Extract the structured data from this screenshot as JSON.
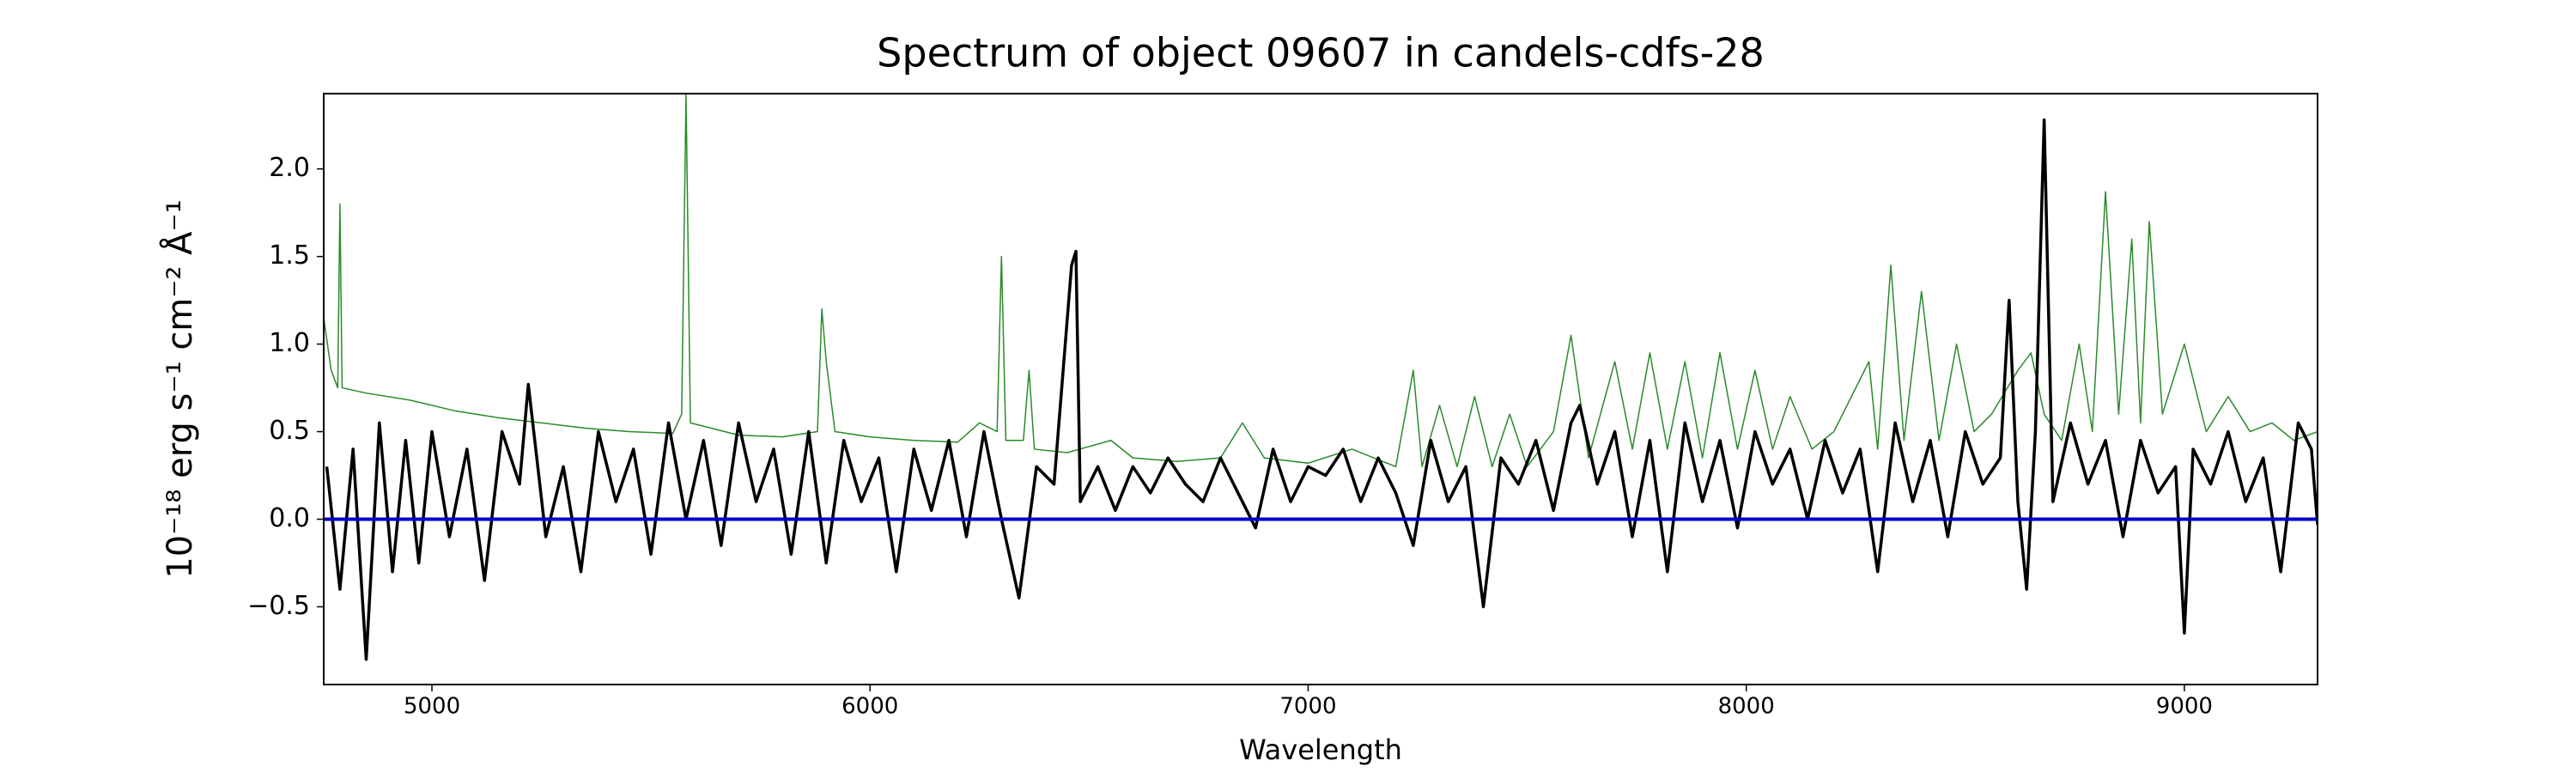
{
  "chart_data": {
    "type": "line",
    "title": "Spectrum of object 09607 in candels-cdfs-28",
    "xlabel": "Wavelength",
    "ylabel": "10⁻¹⁸ erg s⁻¹ cm⁻² Å⁻¹",
    "xlim": [
      4753,
      9304
    ],
    "ylim": [
      -0.944,
      2.43
    ],
    "xticks": [
      5000,
      6000,
      7000,
      8000,
      9000
    ],
    "yticks": [
      {
        "value": -0.5,
        "label": "−0.5"
      },
      {
        "value": 0,
        "label": "0.0"
      },
      0.5,
      {
        "value": 1,
        "label": "1.0"
      },
      1.5,
      {
        "value": 2,
        "label": "2.0"
      }
    ],
    "series": [
      {
        "color": "#2a8a2a",
        "width": 1.5,
        "x": [
          4753,
          4770,
          4785,
          4790,
          4795,
          4850,
          4950,
          5050,
          5150,
          5250,
          5350,
          5450,
          5550,
          5570,
          5580,
          5590,
          5700,
          5800,
          5880,
          5890,
          5900,
          5920,
          6000,
          6100,
          6200,
          6250,
          6290,
          6300,
          6310,
          6350,
          6363,
          6375,
          6450,
          6550,
          6600,
          6700,
          6800,
          6850,
          6900,
          7000,
          7100,
          7200,
          7240,
          7260,
          7300,
          7340,
          7380,
          7420,
          7460,
          7500,
          7560,
          7600,
          7640,
          7700,
          7740,
          7780,
          7820,
          7860,
          7900,
          7940,
          7980,
          8020,
          8060,
          8100,
          8150,
          8200,
          8280,
          8300,
          8330,
          8360,
          8400,
          8440,
          8480,
          8520,
          8560,
          8620,
          8650,
          8680,
          8720,
          8760,
          8790,
          8820,
          8850,
          8880,
          8900,
          8920,
          8950,
          9000,
          9050,
          9100,
          9150,
          9200,
          9250,
          9304
        ],
        "values": [
          1.15,
          0.85,
          0.75,
          1.8,
          0.75,
          0.72,
          0.68,
          0.62,
          0.58,
          0.55,
          0.52,
          0.5,
          0.49,
          0.6,
          2.43,
          0.55,
          0.48,
          0.47,
          0.5,
          1.2,
          0.9,
          0.5,
          0.47,
          0.45,
          0.44,
          0.55,
          0.5,
          1.5,
          0.45,
          0.45,
          0.85,
          0.4,
          0.38,
          0.45,
          0.35,
          0.33,
          0.35,
          0.55,
          0.35,
          0.32,
          0.4,
          0.3,
          0.85,
          0.3,
          0.65,
          0.3,
          0.7,
          0.3,
          0.6,
          0.3,
          0.5,
          1.05,
          0.35,
          0.9,
          0.4,
          0.95,
          0.4,
          0.9,
          0.35,
          0.95,
          0.4,
          0.85,
          0.4,
          0.7,
          0.4,
          0.5,
          0.9,
          0.4,
          1.45,
          0.45,
          1.3,
          0.45,
          1.0,
          0.5,
          0.6,
          0.85,
          0.95,
          0.6,
          0.45,
          1.0,
          0.5,
          1.87,
          0.6,
          1.6,
          0.55,
          1.7,
          0.6,
          1.0,
          0.5,
          0.7,
          0.5,
          0.55,
          0.45,
          0.5
        ]
      },
      {
        "color": "#000000",
        "width": 3.5,
        "x": [
          4760,
          4790,
          4820,
          4850,
          4880,
          4910,
          4940,
          4970,
          5000,
          5040,
          5080,
          5120,
          5160,
          5200,
          5220,
          5260,
          5300,
          5340,
          5380,
          5420,
          5460,
          5500,
          5540,
          5580,
          5620,
          5660,
          5700,
          5740,
          5780,
          5820,
          5860,
          5900,
          5940,
          5980,
          6020,
          6060,
          6100,
          6140,
          6180,
          6220,
          6260,
          6300,
          6340,
          6380,
          6420,
          6460,
          6470,
          6480,
          6520,
          6560,
          6600,
          6640,
          6680,
          6720,
          6760,
          6800,
          6840,
          6880,
          6920,
          6960,
          7000,
          7040,
          7080,
          7120,
          7160,
          7200,
          7240,
          7280,
          7320,
          7360,
          7400,
          7440,
          7480,
          7520,
          7560,
          7600,
          7620,
          7660,
          7700,
          7740,
          7780,
          7820,
          7860,
          7900,
          7940,
          7980,
          8020,
          8060,
          8100,
          8140,
          8180,
          8220,
          8260,
          8300,
          8340,
          8380,
          8420,
          8460,
          8500,
          8540,
          8580,
          8600,
          8620,
          8640,
          8660,
          8680,
          8700,
          8740,
          8780,
          8820,
          8860,
          8900,
          8940,
          8980,
          9000,
          9020,
          9060,
          9100,
          9140,
          9180,
          9220,
          9260,
          9290,
          9304
        ],
        "values": [
          0.3,
          -0.4,
          0.4,
          -0.8,
          0.55,
          -0.3,
          0.45,
          -0.25,
          0.5,
          -0.1,
          0.4,
          -0.35,
          0.5,
          0.2,
          0.77,
          -0.1,
          0.3,
          -0.3,
          0.5,
          0.1,
          0.4,
          -0.2,
          0.55,
          0.0,
          0.45,
          -0.15,
          0.55,
          0.1,
          0.4,
          -0.2,
          0.5,
          -0.25,
          0.45,
          0.1,
          0.35,
          -0.3,
          0.4,
          0.05,
          0.45,
          -0.1,
          0.5,
          0.0,
          -0.45,
          0.3,
          0.2,
          1.45,
          1.53,
          0.1,
          0.3,
          0.05,
          0.3,
          0.15,
          0.35,
          0.2,
          0.1,
          0.35,
          0.15,
          -0.05,
          0.4,
          0.1,
          0.3,
          0.25,
          0.4,
          0.1,
          0.35,
          0.15,
          -0.15,
          0.45,
          0.1,
          0.3,
          -0.5,
          0.35,
          0.2,
          0.45,
          0.05,
          0.55,
          0.65,
          0.2,
          0.5,
          -0.1,
          0.45,
          -0.3,
          0.55,
          0.1,
          0.45,
          -0.05,
          0.5,
          0.2,
          0.4,
          0.0,
          0.45,
          0.15,
          0.4,
          -0.3,
          0.55,
          0.1,
          0.45,
          -0.1,
          0.5,
          0.2,
          0.35,
          1.25,
          0.1,
          -0.4,
          0.5,
          2.28,
          0.1,
          0.55,
          0.2,
          0.45,
          -0.1,
          0.45,
          0.15,
          0.3,
          -0.65,
          0.4,
          0.2,
          0.5,
          0.1,
          0.35,
          -0.3,
          0.55,
          0.4,
          -0.03
        ]
      },
      {
        "color": "#0000cc",
        "width": 4,
        "x": [
          4753,
          9304
        ],
        "values": [
          0,
          0
        ]
      }
    ]
  }
}
